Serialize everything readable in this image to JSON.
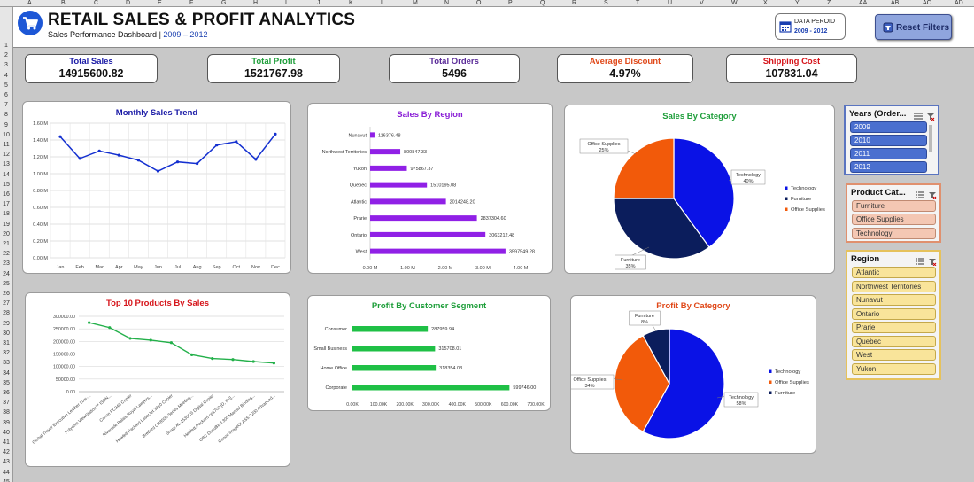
{
  "spreadsheet": {
    "columns": [
      "A",
      "B",
      "C",
      "D",
      "E",
      "F",
      "G",
      "H",
      "I",
      "J",
      "K",
      "L",
      "M",
      "N",
      "O",
      "P",
      "Q",
      "R",
      "S",
      "T",
      "U",
      "V",
      "W",
      "X",
      "Y",
      "Z",
      "AA",
      "AB",
      "AC",
      "AD"
    ],
    "rows": [
      "1",
      "2",
      "3",
      "4",
      "5",
      "6",
      "7",
      "8",
      "9",
      "10",
      "11",
      "12",
      "13",
      "14",
      "15",
      "16",
      "17",
      "18",
      "19",
      "20",
      "21",
      "22",
      "23",
      "24",
      "25",
      "26",
      "27",
      "28",
      "29",
      "30",
      "31",
      "32",
      "33",
      "34",
      "35",
      "36",
      "37",
      "38",
      "39",
      "40",
      "41",
      "42",
      "43",
      "44",
      "45",
      "46",
      "47"
    ]
  },
  "header": {
    "title": "RETAIL SALES & PROFIT ANALYTICS",
    "subtitle_prefix": "Sales Performance Dashboard | ",
    "subtitle_years": "2009 – 2012",
    "period_label": "DATA PEROID",
    "period_value": "2009 - 2012",
    "reset_label": "Reset Filters",
    "logo_icon": "shopping-cart-icon",
    "calendar_icon": "calendar-icon",
    "reset_icon": "filter-clear-icon"
  },
  "kpis": [
    {
      "label": "Total Sales",
      "value": "14915600.82",
      "color": "#1a1aa6"
    },
    {
      "label": "Total Profit",
      "value": "1521767.98",
      "color": "#1e9e3a"
    },
    {
      "label": "Total Orders",
      "value": "5496",
      "color": "#5b2c99"
    },
    {
      "label": "Average Discount",
      "value": "4.97%",
      "color": "#e0491a"
    },
    {
      "label": "Shipping Cost",
      "value": "107831.04",
      "color": "#d6151b"
    }
  ],
  "colors": {
    "blue": "#0a12e6",
    "navy": "#0b1d5c",
    "orange": "#f25a0a",
    "purple": "#9020e6",
    "green": "#1fc046",
    "line_blue": "#1430d0",
    "line_green": "#23b04a"
  },
  "chart_data": [
    {
      "type": "line",
      "id": "monthly",
      "title": "Monthly Sales Trend",
      "categories": [
        "Jan",
        "Feb",
        "Mar",
        "Apr",
        "May",
        "Jun",
        "Jul",
        "Aug",
        "Sep",
        "Oct",
        "Nov",
        "Dec"
      ],
      "values": [
        1.44,
        1.18,
        1.27,
        1.22,
        1.16,
        1.03,
        1.14,
        1.12,
        1.34,
        1.38,
        1.17,
        1.47
      ],
      "ylim": [
        0,
        1.6
      ],
      "yticks": [
        "0.00 M",
        "0.20 M",
        "0.40 M",
        "0.60 M",
        "0.80 M",
        "1.00 M",
        "1.20 M",
        "1.40 M",
        "1.60 M"
      ],
      "grid": true
    },
    {
      "type": "bar",
      "id": "region",
      "orientation": "horizontal",
      "title": "Sales By Region",
      "categories": [
        "Nunavut",
        "Northwest Territories",
        "Yukon",
        "Quebec",
        "Atlantic",
        "Prarie",
        "Ontario",
        "West"
      ],
      "values": [
        116376.48,
        800847.33,
        975867.37,
        1510195.08,
        2014248.2,
        2837304.6,
        3063212.48,
        3597549.28
      ],
      "labels": [
        "116376.48",
        "800847.33",
        "975867.37",
        "1510195.08",
        "2014248.20",
        "2837304.60",
        "3063212.48",
        "3597549.28"
      ],
      "xlim": [
        0,
        4
      ],
      "xticks": [
        "0.00 M",
        "1.00 M",
        "2.00 M",
        "3.00 M",
        "4.00 M"
      ]
    },
    {
      "type": "pie",
      "id": "salescat",
      "title": "Sales By Category",
      "categories": [
        "Technology",
        "Furniture",
        "Office Supplies"
      ],
      "values": [
        40,
        35,
        25
      ],
      "data_labels": [
        [
          "Technology",
          "40%"
        ],
        [
          "Furniture",
          "35%"
        ],
        [
          "Office Supplies",
          "25%"
        ]
      ],
      "legend": "right"
    },
    {
      "type": "line",
      "id": "top10",
      "title": "Top 10 Products By Sales",
      "categories": [
        "Global Troyer Executive Leather Low-...",
        "Polycom ViewStation™ ISDN...",
        "Canon PC940 Copier",
        "Riverside Palais Royal Lawyers...",
        "Hewlett Packard LaserJet 3310 Copier",
        "Bretford CR8500 Series Meeting...",
        "Sharp AL-1530CS Digital Copier",
        "Hewlett-Packard cp1700 [D, PS]...",
        "GBC DocuBind 300 Manual Binding...",
        "Canon imageCLASS 2200 Advanced..."
      ],
      "values": [
        275000,
        255000,
        212000,
        205000,
        195000,
        147000,
        132000,
        128000,
        120000,
        114000
      ],
      "ylim": [
        0,
        300000
      ],
      "yticks": [
        "0.00",
        "50000.00",
        "100000.00",
        "150000.00",
        "200000.00",
        "250000.00",
        "300000.00"
      ],
      "grid": true
    },
    {
      "type": "bar",
      "id": "segment",
      "orientation": "horizontal",
      "title": "Profit By Customer Segment",
      "categories": [
        "Consumer",
        "Small Business",
        "Home Office",
        "Corporate"
      ],
      "values": [
        287959.94,
        315708.01,
        318354.03,
        599746.0
      ],
      "labels": [
        "287959.94",
        "315708.01",
        "318354.03",
        "599746.00"
      ],
      "xlim": [
        0,
        700000
      ],
      "xticks": [
        "0.00K",
        "100.00K",
        "200.00K",
        "300.00K",
        "400.00K",
        "500.00K",
        "600.00K",
        "700.00K"
      ]
    },
    {
      "type": "pie",
      "id": "profitcat",
      "title": "Profit By Category",
      "categories": [
        "Technology",
        "Office Supplies",
        "Furniture"
      ],
      "values": [
        58,
        34,
        8
      ],
      "data_labels": [
        [
          "Technology",
          "58%"
        ],
        [
          "Office Supplies",
          "34%"
        ],
        [
          "Furniture",
          "8%"
        ]
      ],
      "legend": "right"
    }
  ],
  "slicers": {
    "years": {
      "title": "Years (Order...",
      "items": [
        "2009",
        "2010",
        "2011",
        "2012"
      ]
    },
    "category": {
      "title": "Product Cat...",
      "items": [
        "Furniture",
        "Office Supplies",
        "Technology"
      ]
    },
    "region": {
      "title": "Region",
      "items": [
        "Atlantic",
        "Northwest Territories",
        "Nunavut",
        "Ontario",
        "Prarie",
        "Quebec",
        "West",
        "Yukon"
      ]
    },
    "icons": [
      "multi-select-icon",
      "clear-filter-icon"
    ]
  }
}
